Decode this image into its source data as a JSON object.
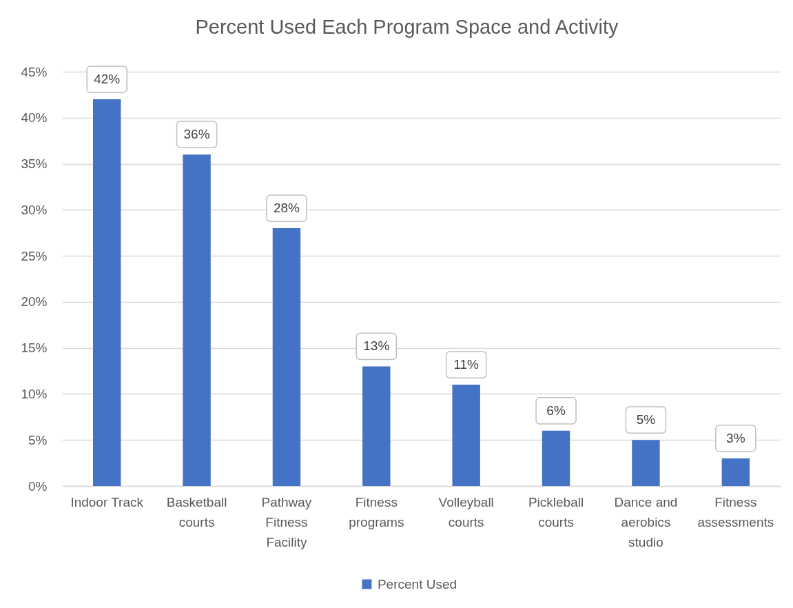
{
  "chart_data": {
    "type": "bar",
    "title": "Percent Used Each Program Space and Activity",
    "categories": [
      "Indoor Track",
      "Basketball courts",
      "Pathway Fitness Facility",
      "Fitness programs",
      "Volleyball courts",
      "Pickleball courts",
      "Dance and aerobics studio",
      "Fitness assessments"
    ],
    "series": [
      {
        "name": "Percent Used",
        "color": "#4472c4",
        "values": [
          42,
          36,
          28,
          13,
          11,
          6,
          5,
          3
        ],
        "value_labels": [
          "42%",
          "36%",
          "28%",
          "13%",
          "11%",
          "6%",
          "5%",
          "3%"
        ]
      }
    ],
    "ylim": [
      0,
      45
    ],
    "yticks": [
      {
        "value": 0,
        "label": "0%"
      },
      {
        "value": 5,
        "label": "5%"
      },
      {
        "value": 10,
        "label": "10%"
      },
      {
        "value": 15,
        "label": "15%"
      },
      {
        "value": 20,
        "label": "20%"
      },
      {
        "value": 25,
        "label": "25%"
      },
      {
        "value": 30,
        "label": "30%"
      },
      {
        "value": 35,
        "label": "35%"
      },
      {
        "value": 40,
        "label": "40%"
      },
      {
        "value": 45,
        "label": "45%"
      }
    ],
    "grid": "y",
    "legend": "bottom"
  }
}
